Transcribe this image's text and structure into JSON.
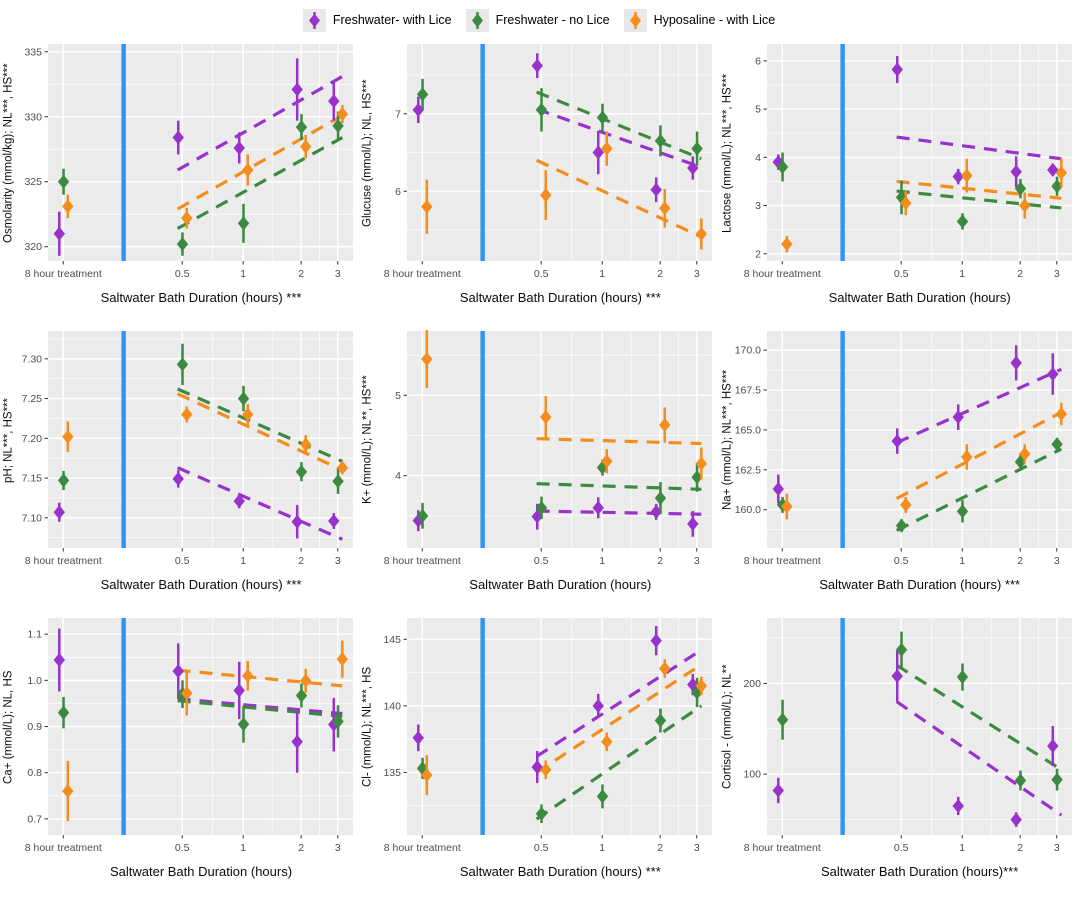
{
  "colors": {
    "fw_lice": "#9932CC",
    "fw_nolice": "#3C8A3F",
    "hypo_lice": "#F28D1E",
    "divider": "#2E96F2",
    "panel_bg": "#EBEBEB",
    "grid_major": "#FFFFFF",
    "grid_minor": "#F5F5F5",
    "tick_text": "#4D4D4D"
  },
  "legend": {
    "items": [
      {
        "label": "Freshwater- with Lice",
        "series": "fw_lice"
      },
      {
        "label": "Freshwater - no Lice",
        "series": "fw_nolice"
      },
      {
        "label": "Hyposaline - with Lice",
        "series": "hypo_lice"
      }
    ]
  },
  "x_axis": {
    "categories": [
      "8 hour treatment",
      "0.5",
      "1",
      "2",
      "3"
    ],
    "positions": [
      0.05,
      0.44,
      0.64,
      0.83,
      0.95
    ],
    "divider_position": 0.248
  },
  "chart_data": [
    {
      "type": "scatter",
      "name": "osmolarity",
      "ylabel": "Osmolarity (mmol/kg); NL***, HS***",
      "xlabel": "Saltwater Bath Duration (hours) ***",
      "ylim": [
        318.9,
        335.6
      ],
      "yticks": [
        320,
        325,
        330,
        335
      ],
      "ytick_labels": [
        "320",
        "325",
        "330",
        "335"
      ],
      "series": [
        {
          "key": "fw_lice",
          "y": [
            321.0,
            328.4,
            327.6,
            332.1,
            331.2
          ],
          "err": [
            1.7,
            1.3,
            1.2,
            2.4,
            1.5
          ],
          "trend": [
            325.9,
            333.1
          ]
        },
        {
          "key": "fw_nolice",
          "y": [
            325.0,
            320.2,
            321.8,
            329.2,
            329.3
          ],
          "err": [
            1.0,
            0.9,
            1.5,
            1.0,
            1.1
          ],
          "trend": [
            321.4,
            328.4
          ]
        },
        {
          "key": "hypo_lice",
          "y": [
            323.1,
            322.2,
            325.9,
            327.7,
            330.2
          ],
          "err": [
            0.9,
            0.8,
            1.2,
            0.9,
            0.7
          ],
          "trend": [
            322.9,
            330.1
          ]
        }
      ]
    },
    {
      "type": "scatter",
      "name": "glucose",
      "ylabel": "Glucuse (mmol/L); NL, HS***",
      "xlabel": "Saltwater Bath Duration (hours) ***",
      "ylim": [
        5.1,
        7.9
      ],
      "yticks": [
        6,
        7
      ],
      "ytick_labels": [
        "6",
        "7"
      ],
      "series": [
        {
          "key": "fw_lice",
          "y": [
            7.05,
            7.62,
            6.5,
            6.02,
            6.3
          ],
          "err": [
            0.17,
            0.16,
            0.28,
            0.16,
            0.15
          ],
          "trend": [
            7.06,
            6.31
          ]
        },
        {
          "key": "fw_nolice",
          "y": [
            7.25,
            7.05,
            6.95,
            6.65,
            6.55
          ],
          "err": [
            0.2,
            0.28,
            0.18,
            0.2,
            0.22
          ],
          "trend": [
            7.28,
            6.42
          ]
        },
        {
          "key": "hypo_lice",
          "y": [
            5.8,
            5.95,
            6.55,
            5.78,
            5.45
          ],
          "err": [
            0.35,
            0.32,
            0.22,
            0.25,
            0.2
          ],
          "trend": [
            6.4,
            5.41
          ]
        }
      ]
    },
    {
      "type": "scatter",
      "name": "lactose",
      "ylabel": "Lactose (mmol/L); NL***, HS***",
      "xlabel": "Saltwater Bath Duration (hours)",
      "ylim": [
        1.85,
        6.35
      ],
      "yticks": [
        2,
        3,
        4,
        5,
        6
      ],
      "ytick_labels": [
        "2",
        "3",
        "4",
        "5",
        "6"
      ],
      "series": [
        {
          "key": "fw_lice",
          "y": [
            3.9,
            5.82,
            3.6,
            3.7,
            3.74
          ],
          "err": [
            0.16,
            0.28,
            0.16,
            0.32,
            0.12
          ],
          "trend": [
            4.42,
            3.97
          ]
        },
        {
          "key": "fw_nolice",
          "y": [
            3.8,
            3.17,
            2.67,
            3.35,
            3.4
          ],
          "err": [
            0.3,
            0.35,
            0.17,
            0.2,
            0.2
          ],
          "trend": [
            3.3,
            2.95
          ]
        },
        {
          "key": "hypo_lice",
          "y": [
            2.2,
            3.05,
            3.62,
            3.0,
            3.68
          ],
          "err": [
            0.17,
            0.25,
            0.35,
            0.27,
            0.3
          ],
          "trend": [
            3.5,
            3.15
          ]
        }
      ]
    },
    {
      "type": "scatter",
      "name": "ph",
      "ylabel": "pH; NL***, HS***",
      "xlabel": "Saltwater Bath Duration (hours) ***",
      "ylim": [
        7.062,
        7.335
      ],
      "yticks": [
        7.1,
        7.15,
        7.2,
        7.25,
        7.3
      ],
      "ytick_labels": [
        "7.10",
        "7.15",
        "7.20",
        "7.25",
        "7.30"
      ],
      "series": [
        {
          "key": "fw_lice",
          "y": [
            7.107,
            7.149,
            7.121,
            7.095,
            7.096
          ],
          "err": [
            0.012,
            0.011,
            0.009,
            0.021,
            0.01
          ],
          "trend": [
            7.163,
            7.073
          ]
        },
        {
          "key": "fw_nolice",
          "y": [
            7.147,
            7.293,
            7.25,
            7.158,
            7.146
          ],
          "err": [
            0.012,
            0.026,
            0.016,
            0.012,
            0.016
          ],
          "trend": [
            7.262,
            7.171
          ]
        },
        {
          "key": "hypo_lice",
          "y": [
            7.202,
            7.23,
            7.23,
            7.192,
            7.163
          ],
          "err": [
            0.019,
            0.01,
            0.013,
            0.012,
            0.008
          ],
          "trend": [
            7.256,
            7.16
          ]
        }
      ]
    },
    {
      "type": "scatter",
      "name": "potassium",
      "ylabel": "K+ (mmol/L); NL**, HS***",
      "xlabel": "Saltwater Bath Duration (hours)",
      "ylim": [
        3.1,
        5.8
      ],
      "yticks": [
        4,
        5
      ],
      "ytick_labels": [
        "4",
        "5"
      ],
      "series": [
        {
          "key": "fw_lice",
          "y": [
            3.44,
            3.49,
            3.6,
            3.55,
            3.4
          ],
          "err": [
            0.13,
            0.16,
            0.13,
            0.1,
            0.16
          ],
          "trend": [
            3.56,
            3.52
          ]
        },
        {
          "key": "fw_nolice",
          "y": [
            3.5,
            3.6,
            4.1,
            3.72,
            3.98
          ],
          "err": [
            0.16,
            0.14,
            0.1,
            0.2,
            0.18
          ],
          "trend": [
            3.9,
            3.83
          ]
        },
        {
          "key": "hypo_lice",
          "y": [
            5.45,
            4.73,
            4.18,
            4.63,
            4.15
          ],
          "err": [
            0.36,
            0.26,
            0.15,
            0.22,
            0.2
          ],
          "trend": [
            4.46,
            4.4
          ]
        }
      ]
    },
    {
      "type": "scatter",
      "name": "sodium",
      "ylabel": "Na+ (mmol/L); NL***, HS***",
      "xlabel": "Saltwater Bath Duration (hours) ***",
      "ylim": [
        157.6,
        171.2
      ],
      "yticks": [
        160.0,
        162.5,
        165.0,
        167.5,
        170.0
      ],
      "ytick_labels": [
        "160.0",
        "162.5",
        "165.0",
        "167.5",
        "170.0"
      ],
      "series": [
        {
          "key": "fw_lice",
          "y": [
            161.3,
            164.3,
            165.8,
            169.2,
            168.5
          ],
          "err": [
            0.9,
            0.8,
            0.8,
            1.1,
            1.3
          ],
          "trend": [
            164.2,
            168.8
          ]
        },
        {
          "key": "fw_nolice",
          "y": [
            160.3,
            159.0,
            159.9,
            163.0,
            164.1
          ],
          "err": [
            0.5,
            0.4,
            0.7,
            0.5,
            0.4
          ],
          "trend": [
            158.7,
            163.8
          ]
        },
        {
          "key": "hypo_lice",
          "y": [
            160.2,
            160.3,
            163.3,
            163.5,
            166.0
          ],
          "err": [
            0.8,
            0.5,
            0.8,
            0.6,
            0.7
          ],
          "trend": [
            160.7,
            166.1
          ]
        }
      ]
    },
    {
      "type": "scatter",
      "name": "calcium",
      "ylabel": "Ca+ (mmol/L); NL, HS",
      "xlabel": "Saltwater Bath Duration (hours)",
      "ylim": [
        0.665,
        1.135
      ],
      "yticks": [
        0.7,
        0.8,
        0.9,
        1.0,
        1.1
      ],
      "ytick_labels": [
        "0.7",
        "0.8",
        "0.9",
        "1.0",
        "1.1"
      ],
      "series": [
        {
          "key": "fw_lice",
          "y": [
            1.044,
            1.02,
            0.978,
            0.867,
            0.904
          ],
          "err": [
            0.068,
            0.06,
            0.062,
            0.067,
            0.058
          ],
          "trend": [
            0.96,
            0.928
          ]
        },
        {
          "key": "fw_nolice",
          "y": [
            0.93,
            0.97,
            0.905,
            0.967,
            0.911
          ],
          "err": [
            0.034,
            0.03,
            0.04,
            0.026,
            0.035
          ],
          "trend": [
            0.956,
            0.922
          ]
        },
        {
          "key": "hypo_lice",
          "y": [
            0.76,
            0.972,
            1.01,
            0.999,
            1.046
          ],
          "err": [
            0.065,
            0.048,
            0.032,
            0.026,
            0.04
          ],
          "trend": [
            1.022,
            0.988
          ]
        }
      ]
    },
    {
      "type": "scatter",
      "name": "chloride",
      "ylabel": "Cl- (mmol/L); NL***, HS",
      "xlabel": "Saltwater Bath Duration (hours) ***",
      "ylim": [
        130.3,
        146.6
      ],
      "yticks": [
        135,
        140,
        145
      ],
      "ytick_labels": [
        "135",
        "140",
        "145"
      ],
      "series": [
        {
          "key": "fw_lice",
          "y": [
            137.6,
            135.4,
            140.0,
            144.9,
            141.6
          ],
          "err": [
            1.0,
            1.2,
            0.9,
            1.1,
            0.8
          ],
          "trend": [
            136.2,
            144.2
          ]
        },
        {
          "key": "fw_nolice",
          "y": [
            135.3,
            131.9,
            133.2,
            138.9,
            141.0
          ],
          "err": [
            0.8,
            0.7,
            0.9,
            0.9,
            1.1
          ],
          "trend": [
            131.5,
            140.0
          ]
        },
        {
          "key": "hypo_lice",
          "y": [
            134.8,
            135.2,
            137.3,
            142.8,
            141.5
          ],
          "err": [
            1.5,
            0.7,
            0.7,
            0.7,
            0.7
          ],
          "trend": [
            135.0,
            143.1
          ]
        }
      ]
    },
    {
      "type": "scatter",
      "name": "cortisol",
      "ylabel": "Cortisol - (mmol/L); NL**",
      "xlabel": "Saltwater Bath Duration (hours)***",
      "ylim": [
        33,
        272
      ],
      "yticks": [
        100,
        200
      ],
      "ytick_labels": [
        "100",
        "200"
      ],
      "series": [
        {
          "key": "fw_lice",
          "y": [
            82,
            208,
            65,
            50,
            131
          ],
          "err": [
            14,
            28,
            10,
            8,
            22
          ],
          "trend": [
            180,
            55
          ]
        },
        {
          "key": "fw_nolice",
          "y": [
            160,
            237,
            207,
            93,
            94
          ],
          "err": [
            22,
            20,
            15,
            11,
            12
          ],
          "trend": [
            220,
            105
          ]
        }
      ]
    }
  ]
}
